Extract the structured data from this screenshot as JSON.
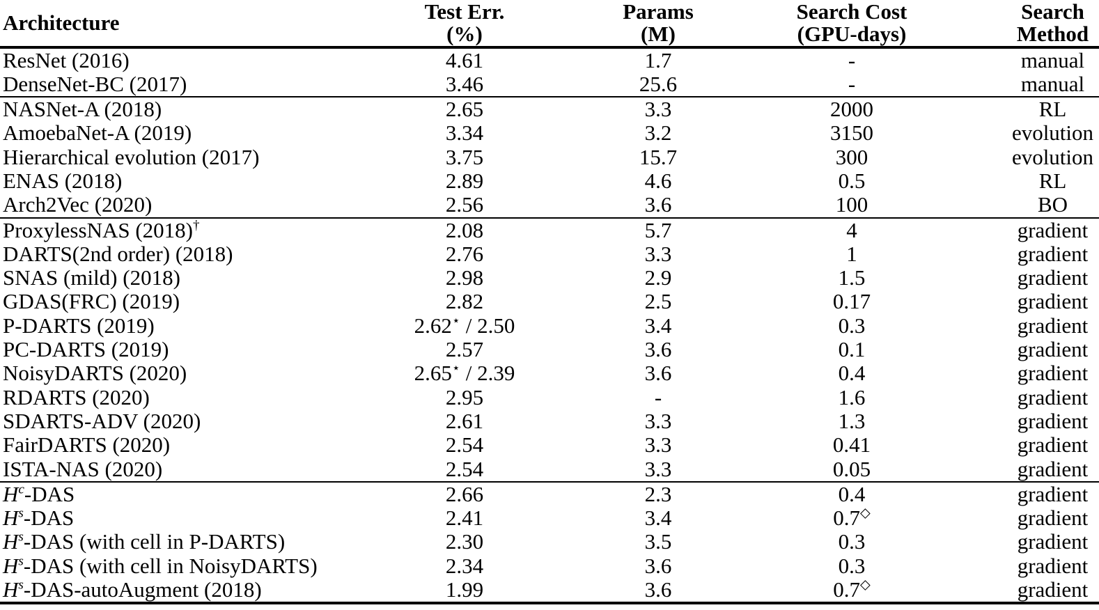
{
  "colors": {
    "text": "#000000",
    "background": "#ffffff",
    "rule": "#000000"
  },
  "table": {
    "columns": [
      {
        "label": "Architecture",
        "sub": ""
      },
      {
        "label": "Test Err.",
        "sub": "(%)"
      },
      {
        "label": "Params",
        "sub": "(M)"
      },
      {
        "label": "Search Cost",
        "sub": "(GPU-days)"
      },
      {
        "label": "Search",
        "sub": "Method"
      }
    ],
    "groups": [
      {
        "rows": [
          {
            "arch": "ResNet (2016)",
            "test_err": "4.61",
            "params": "1.7",
            "cost": "-",
            "method": "manual"
          },
          {
            "arch": "DenseNet-BC (2017)",
            "test_err": "3.46",
            "params": "25.6",
            "cost": "-",
            "method": "manual"
          }
        ]
      },
      {
        "rows": [
          {
            "arch": "NASNet-A (2018)",
            "test_err": "2.65",
            "params": "3.3",
            "cost": "2000",
            "method": "RL"
          },
          {
            "arch": "AmoebaNet-A (2019)",
            "test_err": "3.34",
            "params": "3.2",
            "cost": "3150",
            "method": "evolution"
          },
          {
            "arch": "Hierarchical evolution (2017)",
            "test_err": "3.75",
            "params": "15.7",
            "cost": "300",
            "method": "evolution"
          },
          {
            "arch": "ENAS (2018)",
            "test_err": "2.89",
            "params": "4.6",
            "cost": "0.5",
            "method": "RL"
          },
          {
            "arch": "Arch2Vec (2020)",
            "test_err": "2.56",
            "params": "3.6",
            "cost": "100",
            "method": "BO"
          }
        ]
      },
      {
        "rows": [
          {
            "arch": [
              {
                "t": "ProxylessNAS (2018)"
              },
              {
                "t": "†",
                "s": "sup"
              }
            ],
            "test_err": "2.08",
            "params": "5.7",
            "cost": "4",
            "method": "gradient"
          },
          {
            "arch": "DARTS(2nd order) (2018)",
            "test_err": "2.76",
            "params": "3.3",
            "cost": "1",
            "method": "gradient"
          },
          {
            "arch": "SNAS (mild) (2018)",
            "test_err": "2.98",
            "params": "2.9",
            "cost": "1.5",
            "method": "gradient"
          },
          {
            "arch": "GDAS(FRC) (2019)",
            "test_err": "2.82",
            "params": "2.5",
            "cost": "0.17",
            "method": "gradient"
          },
          {
            "arch": "P-DARTS (2019)",
            "test_err": [
              {
                "t": "2.62"
              },
              {
                "t": "⋆",
                "s": "sup"
              },
              {
                "t": " / 2.50"
              }
            ],
            "params": "3.4",
            "cost": "0.3",
            "method": "gradient"
          },
          {
            "arch": "PC-DARTS (2019)",
            "test_err": "2.57",
            "params": "3.6",
            "cost": "0.1",
            "method": "gradient"
          },
          {
            "arch": "NoisyDARTS (2020)",
            "test_err": [
              {
                "t": "2.65"
              },
              {
                "t": "⋆",
                "s": "sup"
              },
              {
                "t": " / 2.39"
              }
            ],
            "params": "3.6",
            "cost": "0.4",
            "method": "gradient"
          },
          {
            "arch": "RDARTS (2020)",
            "test_err": "2.95",
            "params": "-",
            "cost": "1.6",
            "method": "gradient"
          },
          {
            "arch": "SDARTS-ADV (2020)",
            "test_err": "2.61",
            "params": "3.3",
            "cost": "1.3",
            "method": "gradient"
          },
          {
            "arch": "FairDARTS (2020)",
            "test_err": "2.54",
            "params": "3.3",
            "cost": "0.41",
            "method": "gradient"
          },
          {
            "arch": "ISTA-NAS (2020)",
            "test_err": "2.54",
            "params": "3.3",
            "cost": "0.05",
            "method": "gradient"
          }
        ]
      },
      {
        "rows": [
          {
            "arch": [
              {
                "t": "H",
                "s": "i"
              },
              {
                "t": "c",
                "s": "sup i"
              },
              {
                "t": "-DAS"
              }
            ],
            "test_err": "2.66",
            "params": "2.3",
            "cost": "0.4",
            "method": "gradient"
          },
          {
            "arch": [
              {
                "t": "H",
                "s": "i"
              },
              {
                "t": "s",
                "s": "sup i"
              },
              {
                "t": "-DAS"
              }
            ],
            "test_err": "2.41",
            "params": "3.4",
            "cost": [
              {
                "t": "0.7"
              },
              {
                "t": "◇",
                "s": "sup"
              }
            ],
            "method": "gradient"
          },
          {
            "arch": [
              {
                "t": "H",
                "s": "i"
              },
              {
                "t": "s",
                "s": "sup i"
              },
              {
                "t": "-DAS (with cell in P-DARTS)"
              }
            ],
            "test_err": "2.30",
            "params": "3.5",
            "cost": "0.3",
            "method": "gradient"
          },
          {
            "arch": [
              {
                "t": "H",
                "s": "i"
              },
              {
                "t": "s",
                "s": "sup i"
              },
              {
                "t": "-DAS (with cell in NoisyDARTS)"
              }
            ],
            "test_err": "2.34",
            "params": "3.6",
            "cost": "0.3",
            "method": "gradient"
          },
          {
            "arch": [
              {
                "t": "H",
                "s": "i"
              },
              {
                "t": "s",
                "s": "sup i"
              },
              {
                "t": "-DAS-autoAugment (2018)"
              }
            ],
            "test_err": "1.99",
            "params": "3.6",
            "cost": [
              {
                "t": "0.7"
              },
              {
                "t": "◇",
                "s": "sup"
              }
            ],
            "method": "gradient"
          }
        ]
      }
    ]
  }
}
